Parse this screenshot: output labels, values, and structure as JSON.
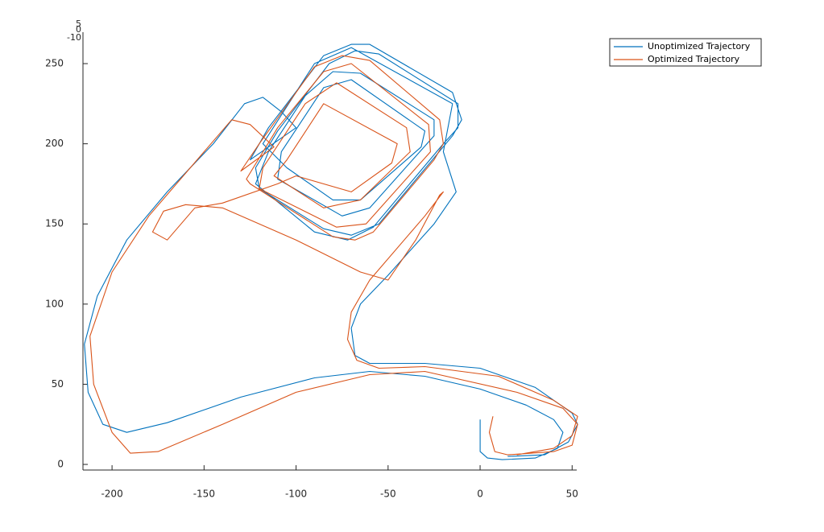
{
  "chart_data": {
    "type": "line",
    "xlim": [
      -215.8,
      52.5
    ],
    "ylim": [
      -3.5,
      269.6
    ],
    "xticks": [
      -200,
      -150,
      -100,
      -50,
      0,
      50
    ],
    "yticks": [
      0,
      50,
      100,
      150,
      200,
      250
    ],
    "zticks": [
      5,
      0,
      -10
    ],
    "legend": "northeast-outside",
    "series": [
      {
        "name": "Unoptimized Trajectory",
        "color": "#0072bd",
        "x": [
          0,
          0,
          4,
          12,
          30,
          42,
          45,
          40,
          25,
          0,
          -30,
          -60,
          -90,
          -130,
          -170,
          -192,
          -205,
          -213,
          -215,
          -208,
          -192,
          -170,
          -145,
          -128,
          -118,
          -108,
          -100,
          -125,
          -115,
          -85,
          -70,
          -60,
          -15,
          -10,
          -15,
          -55,
          -70,
          -85,
          -120,
          -122,
          -110,
          -82,
          -68,
          -55,
          -12,
          -12,
          -20,
          -58,
          -72,
          -90,
          -122,
          -115,
          -95,
          -80,
          -65,
          -25,
          -25,
          -60,
          -75,
          -110,
          -108,
          -85,
          -70,
          -30,
          -32,
          -65,
          -80,
          -105,
          -118,
          -90,
          -70,
          -15,
          -20,
          -13,
          -25,
          -50,
          -65,
          -70,
          -68,
          -60,
          -30,
          0,
          30,
          50,
          53,
          48,
          35,
          15
        ],
        "values": [
          28,
          8,
          4,
          3,
          4,
          10,
          20,
          28,
          37,
          47,
          55,
          58,
          54,
          42,
          26,
          20,
          25,
          45,
          75,
          105,
          140,
          170,
          200,
          225,
          229,
          220,
          210,
          190,
          210,
          255,
          262,
          262,
          232,
          215,
          205,
          150,
          143,
          147,
          172,
          185,
          208,
          250,
          258,
          256,
          225,
          210,
          200,
          148,
          140,
          145,
          175,
          195,
          230,
          245,
          244,
          215,
          205,
          160,
          155,
          178,
          195,
          235,
          240,
          208,
          198,
          165,
          165,
          185,
          200,
          250,
          260,
          225,
          195,
          170,
          150,
          118,
          100,
          85,
          68,
          63,
          63,
          60,
          48,
          32,
          25,
          14,
          6,
          5
        ]
      },
      {
        "name": "Optimized Trajectory",
        "color": "#d95319",
        "x": [
          7,
          5,
          8,
          15,
          40,
          50,
          53,
          45,
          20,
          -30,
          -60,
          -100,
          -140,
          -175,
          -190,
          -200,
          -210,
          -212,
          -200,
          -180,
          -150,
          -135,
          -125,
          -112,
          -130,
          -120,
          -90,
          -75,
          -60,
          -22,
          -20,
          -25,
          -58,
          -68,
          -80,
          -125,
          -127,
          -110,
          -85,
          -70,
          -28,
          -27,
          -62,
          -78,
          -120,
          -118,
          -95,
          -78,
          -40,
          -38,
          -65,
          -85,
          -112,
          -105,
          -85,
          -45,
          -48,
          -70,
          -100,
          -110,
          -140,
          -155,
          -170,
          -178,
          -172,
          -160,
          -140,
          -100,
          -65,
          -50,
          -35,
          -22,
          -20,
          -30,
          -60,
          -70,
          -72,
          -67,
          -55,
          -30,
          10,
          40,
          53,
          50,
          40,
          20
        ],
        "values": [
          30,
          20,
          8,
          6,
          8,
          12,
          25,
          35,
          45,
          58,
          56,
          45,
          25,
          8,
          7,
          20,
          50,
          80,
          120,
          155,
          195,
          215,
          212,
          198,
          183,
          200,
          248,
          255,
          252,
          215,
          200,
          190,
          145,
          140,
          142,
          175,
          178,
          210,
          245,
          250,
          212,
          195,
          150,
          148,
          172,
          185,
          225,
          238,
          210,
          195,
          165,
          160,
          180,
          190,
          225,
          200,
          188,
          170,
          180,
          175,
          163,
          160,
          140,
          145,
          158,
          162,
          160,
          140,
          120,
          115,
          140,
          168,
          170,
          155,
          115,
          95,
          78,
          65,
          60,
          61,
          55,
          40,
          30,
          18,
          10,
          6
        ]
      }
    ]
  }
}
